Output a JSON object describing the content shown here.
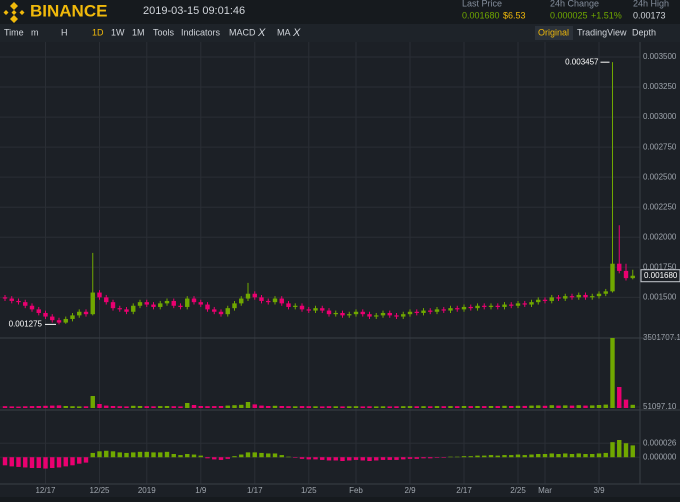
{
  "header": {
    "logo": "BINANCE",
    "time": "2019-03-15 09:01:46",
    "stats": [
      {
        "label": "Last Price",
        "value": "0.001680",
        "sub": "$6.53"
      },
      {
        "label": "24h Change",
        "value": "0.000025",
        "sub": "+1.51%"
      },
      {
        "label": "24h High",
        "value": "0.00173"
      }
    ]
  },
  "toolbar": {
    "left": [
      "Time",
      "m",
      "H",
      "1D",
      "1W",
      "1M",
      "Tools",
      "Indicators"
    ],
    "indicators": [
      "MACD",
      "MA"
    ],
    "close": "X",
    "active": "1D",
    "right": [
      "Original",
      "TradingView",
      "Depth"
    ],
    "right_active": "Original"
  },
  "chart_data": {
    "type": "candlestick",
    "up_color": "#70a800",
    "down_color": "#ea0070",
    "categories": [
      null,
      null,
      null,
      null,
      null,
      null,
      "12/17",
      null,
      null,
      null,
      null,
      null,
      null,
      null,
      "12/25",
      null,
      null,
      null,
      null,
      null,
      null,
      "2019",
      null,
      null,
      null,
      null,
      null,
      null,
      null,
      "1/9",
      null,
      null,
      null,
      null,
      null,
      null,
      null,
      "1/17",
      null,
      null,
      null,
      null,
      null,
      null,
      null,
      "1/25",
      null,
      null,
      null,
      null,
      null,
      null,
      "Feb",
      null,
      null,
      null,
      null,
      null,
      null,
      null,
      "2/9",
      null,
      null,
      null,
      null,
      null,
      null,
      null,
      "2/17",
      null,
      null,
      null,
      null,
      null,
      null,
      null,
      "2/25",
      null,
      null,
      null,
      "Mar",
      null,
      null,
      null,
      null,
      null,
      null,
      null,
      "3/9",
      null,
      null,
      null,
      null,
      null
    ],
    "candles": [
      [
        0.0015,
        0.00152,
        0.00147,
        0.00149
      ],
      [
        0.00149,
        0.00151,
        0.00145,
        0.00147
      ],
      [
        0.00147,
        0.00149,
        0.00144,
        0.00146
      ],
      [
        0.00146,
        0.00148,
        0.00141,
        0.00143
      ],
      [
        0.00143,
        0.00145,
        0.00138,
        0.0014
      ],
      [
        0.0014,
        0.00142,
        0.00135,
        0.00137
      ],
      [
        0.00137,
        0.00139,
        0.00132,
        0.00134
      ],
      [
        0.00134,
        0.00136,
        0.00129,
        0.00131
      ],
      [
        0.00131,
        0.00133,
        0.001275,
        0.00129
      ],
      [
        0.00129,
        0.00134,
        0.00128,
        0.00132
      ],
      [
        0.00132,
        0.00137,
        0.0013,
        0.00135
      ],
      [
        0.00135,
        0.0014,
        0.00133,
        0.00138
      ],
      [
        0.00138,
        0.0014,
        0.00134,
        0.00136
      ],
      [
        0.00136,
        0.00187,
        0.00135,
        0.00154
      ],
      [
        0.00154,
        0.00156,
        0.00148,
        0.0015
      ],
      [
        0.0015,
        0.00152,
        0.00144,
        0.00146
      ],
      [
        0.00146,
        0.00148,
        0.00139,
        0.00141
      ],
      [
        0.00141,
        0.00143,
        0.00138,
        0.0014
      ],
      [
        0.0014,
        0.00142,
        0.00136,
        0.00138
      ],
      [
        0.00138,
        0.00145,
        0.00136,
        0.00143
      ],
      [
        0.00143,
        0.00148,
        0.00141,
        0.00146
      ],
      [
        0.00146,
        0.00148,
        0.00142,
        0.00144
      ],
      [
        0.00144,
        0.00146,
        0.0014,
        0.00142
      ],
      [
        0.00142,
        0.00147,
        0.0014,
        0.00145
      ],
      [
        0.00145,
        0.00149,
        0.00143,
        0.00147
      ],
      [
        0.00147,
        0.00149,
        0.00141,
        0.00143
      ],
      [
        0.00143,
        0.00145,
        0.0014,
        0.00142
      ],
      [
        0.00142,
        0.00151,
        0.0014,
        0.00149
      ],
      [
        0.00149,
        0.00151,
        0.00144,
        0.00146
      ],
      [
        0.00146,
        0.00148,
        0.00142,
        0.00144
      ],
      [
        0.00144,
        0.00146,
        0.00138,
        0.0014
      ],
      [
        0.0014,
        0.00142,
        0.00136,
        0.00138
      ],
      [
        0.00138,
        0.0014,
        0.00134,
        0.00136
      ],
      [
        0.00136,
        0.00143,
        0.00134,
        0.00141
      ],
      [
        0.00141,
        0.00147,
        0.00139,
        0.00145
      ],
      [
        0.00145,
        0.00151,
        0.00143,
        0.00149
      ],
      [
        0.00149,
        0.00162,
        0.00147,
        0.00153
      ],
      [
        0.00153,
        0.00155,
        0.00148,
        0.0015
      ],
      [
        0.0015,
        0.00152,
        0.00145,
        0.00147
      ],
      [
        0.00147,
        0.00149,
        0.00144,
        0.00146
      ],
      [
        0.00146,
        0.00151,
        0.00144,
        0.00149
      ],
      [
        0.00149,
        0.00151,
        0.00143,
        0.00145
      ],
      [
        0.00145,
        0.00147,
        0.0014,
        0.00142
      ],
      [
        0.00142,
        0.00145,
        0.0014,
        0.00143
      ],
      [
        0.00143,
        0.00145,
        0.00138,
        0.0014
      ],
      [
        0.0014,
        0.00142,
        0.00137,
        0.00139
      ],
      [
        0.00139,
        0.00143,
        0.00137,
        0.00141
      ],
      [
        0.00141,
        0.00143,
        0.00137,
        0.00139
      ],
      [
        0.00139,
        0.00141,
        0.00134,
        0.00136
      ],
      [
        0.00136,
        0.00139,
        0.00134,
        0.00137
      ],
      [
        0.00137,
        0.00139,
        0.00133,
        0.00135
      ],
      [
        0.00135,
        0.00138,
        0.00133,
        0.00136
      ],
      [
        0.00136,
        0.0014,
        0.00134,
        0.00138
      ],
      [
        0.00138,
        0.0014,
        0.00134,
        0.00136
      ],
      [
        0.00136,
        0.00138,
        0.00132,
        0.00134
      ],
      [
        0.00134,
        0.00137,
        0.00132,
        0.00135
      ],
      [
        0.00135,
        0.00139,
        0.00133,
        0.00137
      ],
      [
        0.00137,
        0.00139,
        0.00133,
        0.00135
      ],
      [
        0.00135,
        0.00137,
        0.00132,
        0.00134
      ],
      [
        0.00134,
        0.00138,
        0.00132,
        0.00136
      ],
      [
        0.00136,
        0.0014,
        0.00134,
        0.00138
      ],
      [
        0.00138,
        0.0014,
        0.00135,
        0.00137
      ],
      [
        0.00137,
        0.00141,
        0.00135,
        0.00139
      ],
      [
        0.00139,
        0.00141,
        0.00136,
        0.00138
      ],
      [
        0.00138,
        0.00142,
        0.00136,
        0.0014
      ],
      [
        0.0014,
        0.00142,
        0.00137,
        0.00139
      ],
      [
        0.00139,
        0.00143,
        0.00137,
        0.00141
      ],
      [
        0.00141,
        0.00143,
        0.00138,
        0.0014
      ],
      [
        0.0014,
        0.00144,
        0.00138,
        0.00142
      ],
      [
        0.00142,
        0.00144,
        0.00139,
        0.00141
      ],
      [
        0.00141,
        0.00145,
        0.00139,
        0.00143
      ],
      [
        0.00143,
        0.00145,
        0.0014,
        0.00142
      ],
      [
        0.00142,
        0.00145,
        0.0014,
        0.00143
      ],
      [
        0.00143,
        0.00145,
        0.0014,
        0.00142
      ],
      [
        0.00142,
        0.00146,
        0.0014,
        0.00144
      ],
      [
        0.00144,
        0.00146,
        0.00141,
        0.00143
      ],
      [
        0.00143,
        0.00147,
        0.00141,
        0.00145
      ],
      [
        0.00145,
        0.00147,
        0.00142,
        0.00144
      ],
      [
        0.00144,
        0.00148,
        0.00142,
        0.00146
      ],
      [
        0.00146,
        0.0015,
        0.00144,
        0.00148
      ],
      [
        0.00148,
        0.0015,
        0.00145,
        0.00147
      ],
      [
        0.00147,
        0.00152,
        0.00145,
        0.0015
      ],
      [
        0.0015,
        0.00152,
        0.00147,
        0.00149
      ],
      [
        0.00149,
        0.00153,
        0.00147,
        0.00151
      ],
      [
        0.00151,
        0.00153,
        0.00148,
        0.0015
      ],
      [
        0.0015,
        0.00154,
        0.00148,
        0.00152
      ],
      [
        0.00152,
        0.00154,
        0.00148,
        0.0015
      ],
      [
        0.0015,
        0.00153,
        0.00148,
        0.00151
      ],
      [
        0.00151,
        0.00155,
        0.00149,
        0.00153
      ],
      [
        0.00153,
        0.00157,
        0.00151,
        0.00155
      ],
      [
        0.00155,
        0.003457,
        0.00154,
        0.00178
      ],
      [
        0.00178,
        0.0021,
        0.0017,
        0.00172
      ],
      [
        0.00172,
        0.00178,
        0.00164,
        0.00166
      ],
      [
        0.00166,
        0.00173,
        0.00165,
        0.00168
      ]
    ],
    "ylim": [
      0.00117,
      0.003625
    ],
    "yticks": [
      {
        "value": 0.0015,
        "label": "0.001500"
      },
      {
        "value": 0.00175,
        "label": "0.001750"
      },
      {
        "value": 0.002,
        "label": "0.002000"
      },
      {
        "value": 0.00225,
        "label": "0.002250"
      },
      {
        "value": 0.0025,
        "label": "0.002500"
      },
      {
        "value": 0.00275,
        "label": "0.002750"
      },
      {
        "value": 0.003,
        "label": "0.003000"
      },
      {
        "value": 0.00325,
        "label": "0.003250"
      },
      {
        "value": 0.0035,
        "label": "0.003500"
      }
    ],
    "annotations": [
      {
        "index": 90,
        "value": 0.003457,
        "label": "0.003457"
      },
      {
        "index": 8,
        "value": 0.001275,
        "label": "0.001275"
      }
    ],
    "last_price": {
      "value": 0.00168,
      "label": "0.001680"
    },
    "volume": {
      "values": [
        90000,
        80000,
        70000,
        85000,
        95000,
        100000,
        110000,
        120000,
        130000,
        100000,
        90000,
        80000,
        85000,
        600000,
        200000,
        120000,
        100000,
        90000,
        80000,
        110000,
        100000,
        90000,
        85000,
        95000,
        100000,
        90000,
        80000,
        250000,
        150000,
        100000,
        90000,
        95000,
        100000,
        120000,
        140000,
        160000,
        300000,
        180000,
        120000,
        100000,
        110000,
        100000,
        90000,
        85000,
        95000,
        90000,
        85000,
        80000,
        90000,
        85000,
        80000,
        85000,
        90000,
        80000,
        85000,
        80000,
        85000,
        80000,
        85000,
        90000,
        95000,
        85000,
        90000,
        85000,
        95000,
        90000,
        95000,
        90000,
        100000,
        95000,
        100000,
        95000,
        100000,
        95000,
        110000,
        100000,
        110000,
        105000,
        120000,
        130000,
        110000,
        140000,
        120000,
        130000,
        120000,
        140000,
        120000,
        130000,
        150000,
        170000,
        3501707.1,
        1050000,
        420000,
        160000
      ],
      "ylim": [
        0,
        3600000
      ],
      "yticks": [
        3501707.1,
        {
          "value": 51097.1,
          "label": "51097.10"
        }
      ]
    },
    "macd": {
      "values": [
        -1.5e-05,
        -1.7e-05,
        -1.8e-05,
        -1.9e-05,
        -2e-05,
        -2e-05,
        -2.1e-05,
        -2e-05,
        -1.9e-05,
        -1.7e-05,
        -1.5e-05,
        -1.2e-05,
        -1e-05,
        8e-06,
        1.1e-05,
        1.2e-05,
        1.1e-05,
        9e-06,
        8e-06,
        9e-06,
        1e-05,
        1e-05,
        9e-06,
        9e-06,
        1e-05,
        6e-06,
        4e-06,
        6e-06,
        5e-06,
        3e-06,
        -2e-06,
        -4e-06,
        -5e-06,
        -3e-06,
        2e-06,
        5e-06,
        9e-06,
        9e-06,
        8e-06,
        7e-06,
        7e-06,
        4e-06,
        1e-06,
        -1e-06,
        -3e-06,
        -4e-06,
        -4e-06,
        -5e-06,
        -6e-06,
        -6e-06,
        -7e-06,
        -6e-06,
        -5e-06,
        -6e-06,
        -7e-06,
        -6e-06,
        -5e-06,
        -5e-06,
        -5e-06,
        -4e-06,
        -3e-06,
        -3e-06,
        -2e-06,
        -2e-06,
        -1e-06,
        -1e-06,
        1e-06,
        1e-06,
        2e-06,
        2e-06,
        3e-06,
        3e-06,
        4e-06,
        3e-06,
        4e-06,
        4e-06,
        5e-06,
        4e-06,
        5e-06,
        6e-06,
        6e-06,
        7e-06,
        6e-06,
        7e-06,
        6e-06,
        7e-06,
        6e-06,
        6e-06,
        7e-06,
        8e-06,
        2.8e-05,
        3.2e-05,
        2.6e-05,
        2.2e-05
      ],
      "ylim": [
        -4.6e-05,
        8.4e-05
      ],
      "yticks": [
        {
          "value": 2.6e-05,
          "label": "0.000026"
        },
        {
          "value": 0,
          "label": "0.000000"
        }
      ]
    }
  }
}
